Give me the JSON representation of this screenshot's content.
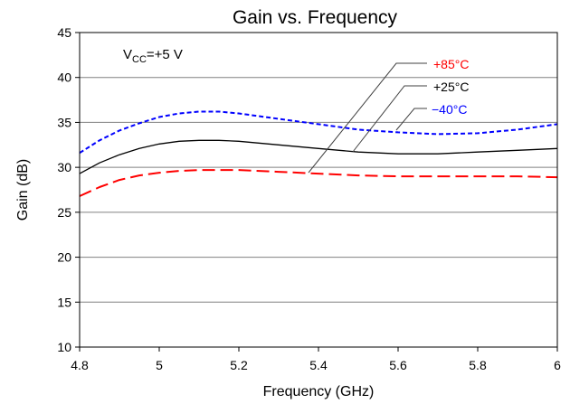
{
  "chart_data": {
    "type": "line",
    "title": "Gain vs. Frequency",
    "xlabel": "Frequency (GHz)",
    "ylabel": "Gain (dB)",
    "xlim": [
      4.8,
      6.0
    ],
    "ylim": [
      10,
      45
    ],
    "xticks": [
      "4.8",
      "5",
      "5.2",
      "5.4",
      "5.6",
      "5.8",
      "6"
    ],
    "yticks": [
      "10",
      "15",
      "20",
      "25",
      "30",
      "35",
      "40",
      "45"
    ],
    "grid": "horizontal",
    "annotation": {
      "prefix": "V",
      "subscript": "CC",
      "suffix": "=+5 V"
    },
    "series": [
      {
        "name": "+85°C",
        "color": "#ff0000",
        "dash": "long-dash",
        "x": [
          4.8,
          4.85,
          4.9,
          4.95,
          5.0,
          5.05,
          5.1,
          5.15,
          5.2,
          5.3,
          5.4,
          5.5,
          5.6,
          5.7,
          5.8,
          5.9,
          6.0
        ],
        "y": [
          26.8,
          27.8,
          28.6,
          29.1,
          29.4,
          29.6,
          29.7,
          29.7,
          29.7,
          29.5,
          29.3,
          29.1,
          29.0,
          29.0,
          29.0,
          29.0,
          28.9
        ]
      },
      {
        "name": "+25°C",
        "color": "#000000",
        "dash": "solid",
        "x": [
          4.8,
          4.85,
          4.9,
          4.95,
          5.0,
          5.05,
          5.1,
          5.15,
          5.2,
          5.3,
          5.4,
          5.5,
          5.6,
          5.7,
          5.8,
          5.9,
          6.0
        ],
        "y": [
          29.3,
          30.5,
          31.4,
          32.1,
          32.6,
          32.9,
          33.0,
          33.0,
          32.9,
          32.5,
          32.1,
          31.7,
          31.5,
          31.5,
          31.7,
          31.9,
          32.1
        ]
      },
      {
        "name": "−40°C",
        "color": "#0000ff",
        "dash": "short-dash",
        "x": [
          4.8,
          4.85,
          4.9,
          4.95,
          5.0,
          5.05,
          5.1,
          5.15,
          5.2,
          5.3,
          5.4,
          5.5,
          5.6,
          5.7,
          5.8,
          5.9,
          6.0
        ],
        "y": [
          31.6,
          33.0,
          34.1,
          34.9,
          35.6,
          36.0,
          36.2,
          36.2,
          36.0,
          35.4,
          34.8,
          34.2,
          33.9,
          33.7,
          33.8,
          34.2,
          34.8
        ]
      }
    ]
  }
}
